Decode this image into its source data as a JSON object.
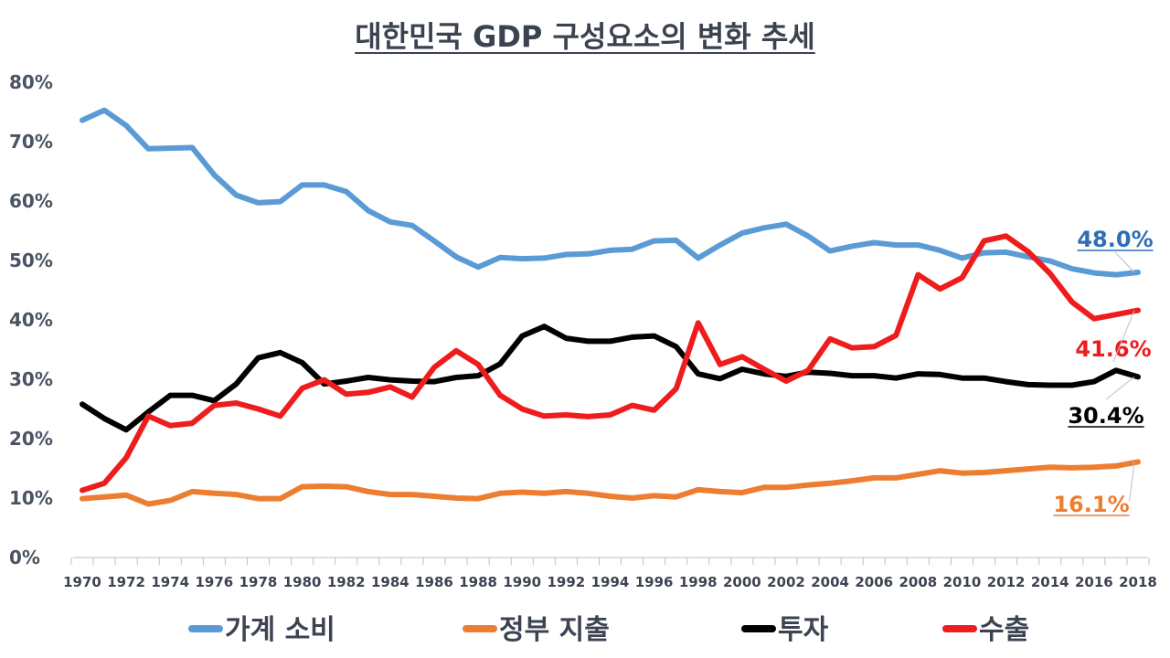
{
  "chart_data": {
    "type": "line",
    "title": "대한민국 GDP 구성요소의 변화 추세",
    "xlabel": "",
    "ylabel": "",
    "ylim": [
      0,
      80
    ],
    "y_ticks": [
      "0%",
      "10%",
      "20%",
      "30%",
      "40%",
      "50%",
      "60%",
      "70%",
      "80%"
    ],
    "x": [
      1970,
      1971,
      1972,
      1973,
      1974,
      1975,
      1976,
      1977,
      1978,
      1979,
      1980,
      1981,
      1982,
      1983,
      1984,
      1985,
      1986,
      1987,
      1988,
      1989,
      1990,
      1991,
      1992,
      1993,
      1994,
      1995,
      1996,
      1997,
      1998,
      1999,
      2000,
      2001,
      2002,
      2003,
      2004,
      2005,
      2006,
      2007,
      2008,
      2009,
      2010,
      2011,
      2012,
      2013,
      2014,
      2015,
      2016,
      2017,
      2018
    ],
    "x_tick_labels": [
      "1970",
      "1972",
      "1974",
      "1976",
      "1978",
      "1980",
      "1982",
      "1984",
      "1986",
      "1988",
      "1990",
      "1992",
      "1994",
      "1996",
      "1998",
      "2000",
      "2002",
      "2004",
      "2006",
      "2008",
      "2010",
      "2012",
      "2014",
      "2016",
      "2018"
    ],
    "legend_position": "bottom",
    "series": [
      {
        "name": "가계 소비",
        "color": "#5b9bd5",
        "end_label": "48.0%",
        "values": [
          73.6,
          75.3,
          72.7,
          68.8,
          68.9,
          69.0,
          64.4,
          61.0,
          59.7,
          59.9,
          62.7,
          62.7,
          61.6,
          58.4,
          56.5,
          55.9,
          53.3,
          50.6,
          48.9,
          50.5,
          50.3,
          50.4,
          51.0,
          51.1,
          51.7,
          51.9,
          53.3,
          53.4,
          50.4,
          52.6,
          54.6,
          55.5,
          56.1,
          54.1,
          51.6,
          52.4,
          53.0,
          52.6,
          52.6,
          51.7,
          50.4,
          51.3,
          51.4,
          50.6,
          49.9,
          48.6,
          47.9,
          47.6,
          48.0
        ]
      },
      {
        "name": "정부 지출",
        "color": "#ed7d31",
        "end_label": "16.1%",
        "values": [
          9.9,
          10.2,
          10.5,
          9.0,
          9.6,
          11.1,
          10.8,
          10.6,
          9.9,
          9.9,
          11.9,
          12.0,
          11.9,
          11.1,
          10.6,
          10.6,
          10.3,
          10.0,
          9.9,
          10.8,
          11.0,
          10.8,
          11.1,
          10.8,
          10.3,
          10.0,
          10.4,
          10.2,
          11.4,
          11.1,
          10.9,
          11.8,
          11.8,
          12.2,
          12.5,
          12.9,
          13.4,
          13.4,
          14.0,
          14.6,
          14.2,
          14.3,
          14.6,
          14.9,
          15.2,
          15.1,
          15.2,
          15.4,
          16.1
        ]
      },
      {
        "name": "투자",
        "color": "#000000",
        "end_label": "30.4%",
        "values": [
          25.8,
          23.4,
          21.5,
          24.5,
          27.3,
          27.3,
          26.4,
          29.2,
          33.6,
          34.5,
          32.8,
          29.2,
          29.7,
          30.3,
          29.9,
          29.7,
          29.6,
          30.3,
          30.6,
          32.6,
          37.3,
          38.9,
          36.9,
          36.4,
          36.4,
          37.1,
          37.3,
          35.5,
          30.9,
          30.1,
          31.7,
          30.9,
          30.5,
          31.2,
          31.0,
          30.6,
          30.6,
          30.2,
          30.9,
          30.8,
          30.2,
          30.2,
          29.6,
          29.1,
          29.0,
          29.0,
          29.6,
          31.5,
          30.4
        ]
      },
      {
        "name": "수출",
        "color": "#ee1c1c",
        "end_label": "41.6%",
        "values": [
          11.3,
          12.5,
          16.8,
          23.8,
          22.2,
          22.6,
          25.6,
          26.0,
          25.0,
          23.8,
          28.5,
          29.9,
          27.5,
          27.8,
          28.7,
          27.0,
          32.0,
          34.8,
          32.5,
          27.3,
          25.0,
          23.8,
          24.0,
          23.7,
          24.0,
          25.6,
          24.8,
          28.4,
          39.5,
          32.5,
          33.8,
          31.7,
          29.7,
          31.5,
          36.8,
          35.3,
          35.5,
          37.4,
          47.6,
          45.2,
          47.1,
          53.3,
          54.1,
          51.5,
          47.8,
          43.0,
          40.2,
          40.9,
          41.6
        ]
      }
    ]
  }
}
